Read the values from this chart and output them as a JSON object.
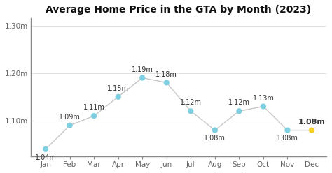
{
  "title": "Average Home Price in the GTA by Month (2023)",
  "months": [
    "Jan",
    "Feb",
    "Mar",
    "Apr",
    "May",
    "Jun",
    "Jul",
    "Aug",
    "Sep",
    "Oct",
    "Nov",
    "Dec"
  ],
  "values": [
    1.04,
    1.09,
    1.11,
    1.15,
    1.19,
    1.18,
    1.12,
    1.08,
    1.12,
    1.13,
    1.08,
    1.08
  ],
  "labels": [
    "1.04m",
    "1.09m",
    "1.11m",
    "1.15m",
    "1.19m",
    "1.18m",
    "1.12m",
    "1.08m",
    "1.12m",
    "1.13m",
    "1.08m",
    "1.08m"
  ],
  "dot_color": "#7DCFE0",
  "last_dot_color": "#F0D020",
  "line_color": "#C8C8C8",
  "ylim": [
    1.025,
    1.315
  ],
  "yticks": [
    1.1,
    1.2,
    1.3
  ],
  "ytick_labels": [
    "1.10m",
    "1.20m",
    "1.30m"
  ],
  "background_color": "#FFFFFF",
  "grid_color": "#DDDDDD",
  "spine_color": "#888888",
  "title_fontsize": 10,
  "label_fontsize": 7.0,
  "axis_label_fontsize": 7.5,
  "last_label_fontweight": "bold",
  "last_label_fontsize": 8.0,
  "label_color": "#333333",
  "axis_tick_color": "#666666",
  "labels_below": [
    0,
    7,
    10
  ],
  "dot_size": 35
}
